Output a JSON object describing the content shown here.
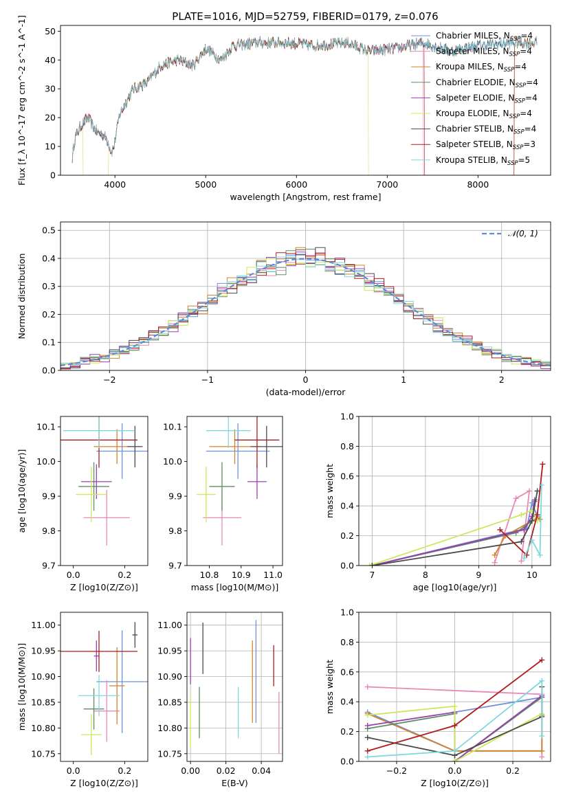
{
  "figure": {
    "title": "PLATE=1016, MJD=52759, FIBERID=0179, z=0.076"
  },
  "colors": [
    "#6f8fe0",
    "#e889b8",
    "#d4822a",
    "#5a8f64",
    "#9b3fb0",
    "#cde85a",
    "#4a4a4a",
    "#b01a1a",
    "#7fd8e0"
  ],
  "chart_data": [
    {
      "id": "spectrum",
      "type": "line",
      "xlabel": "wavelength [Angstrom, rest frame]",
      "ylabel": "Flux [f_λ 10^-17 erg cm^-2 s^-1 A^-1]",
      "xlim": [
        3400,
        8800
      ],
      "ylim": [
        0,
        52
      ],
      "xticks": [
        4000,
        5000,
        6000,
        7000,
        8000
      ],
      "yticks": [
        0,
        10,
        20,
        30,
        40,
        50
      ],
      "grid": false,
      "legend_position": "right",
      "series": [
        {
          "name": "Chabrier MILES, N_SSP=4",
          "color": "#6f8fe0"
        },
        {
          "name": "Salpeter MILES, N_SSP=4",
          "color": "#e889b8"
        },
        {
          "name": "Kroupa MILES, N_SSP=4",
          "color": "#d4822a"
        },
        {
          "name": "Chabrier ELODIE, N_SSP=4",
          "color": "#5a8f64"
        },
        {
          "name": "Salpeter ELODIE, N_SSP=4",
          "color": "#9b3fb0"
        },
        {
          "name": "Kroupa ELODIE, N_SSP=4",
          "color": "#cde85a"
        },
        {
          "name": "Chabrier STELIB, N_SSP=4",
          "color": "#4a4a4a"
        },
        {
          "name": "Salpeter STELIB, N_SSP=3",
          "color": "#b01a1a"
        },
        {
          "name": "Kroupa STELIB, N_SSP=5",
          "color": "#7fd8e0"
        }
      ],
      "continuum": [
        [
          3520,
          4
        ],
        [
          3560,
          13
        ],
        [
          3620,
          17
        ],
        [
          3700,
          20
        ],
        [
          3800,
          15
        ],
        [
          3870,
          14
        ],
        [
          3920,
          12
        ],
        [
          3960,
          8
        ],
        [
          3990,
          10
        ],
        [
          4050,
          21
        ],
        [
          4200,
          30
        ],
        [
          4350,
          32
        ],
        [
          4500,
          38
        ],
        [
          4700,
          40
        ],
        [
          4862,
          38
        ],
        [
          5000,
          44
        ],
        [
          5173,
          40
        ],
        [
          5300,
          45
        ],
        [
          5600,
          46
        ],
        [
          5900,
          46
        ],
        [
          6200,
          45
        ],
        [
          6563,
          46
        ],
        [
          6800,
          43
        ],
        [
          7100,
          44
        ],
        [
          7400,
          46
        ],
        [
          7700,
          43
        ],
        [
          8000,
          45
        ],
        [
          8400,
          46
        ],
        [
          8700,
          46
        ]
      ],
      "noise_amplitude": 1.6,
      "dropouts": [
        {
          "series": 5,
          "range": [
            3650,
            3930
          ]
        },
        {
          "series": 5,
          "range": [
            6790,
            8400
          ]
        },
        {
          "series": 7,
          "range": [
            7410,
            8400
          ]
        },
        {
          "series": 1,
          "range": [
            7400,
            8400
          ]
        }
      ]
    },
    {
      "id": "residual-histogram",
      "type": "line",
      "xlabel": "(data-model)/error",
      "ylabel": "Normed distribution",
      "xlim": [
        -2.5,
        2.5
      ],
      "ylim": [
        0,
        0.53
      ],
      "xticks": [
        -2,
        -1,
        0,
        1,
        2
      ],
      "yticks": [
        0.0,
        0.1,
        0.2,
        0.3,
        0.4,
        0.5
      ],
      "grid": true,
      "legend": [
        {
          "name": "𝒩(0, 1)",
          "style": "dashed",
          "color": "#5b8bd6"
        }
      ],
      "legend_position": "top-right",
      "bin_width": 0.1,
      "bin_start": -2.5,
      "histogram_scale": 1.0,
      "jitter": 0.03
    },
    {
      "id": "age-vs-z",
      "type": "scatter",
      "xlabel": "Z [log10(Z/Z⊙)]",
      "ylabel": "age  [log10(age/yr)]",
      "xlim": [
        -0.05,
        0.29
      ],
      "ylim": [
        9.7,
        10.13
      ],
      "xticks": [
        0.0,
        0.2
      ],
      "yticks": [
        9.7,
        9.8,
        9.9,
        10.0,
        10.1
      ],
      "grid": false,
      "points": [
        {
          "x": 0.19,
          "y": 10.03,
          "xerr": 0.1,
          "yerr": 0.08,
          "color": "#6f8fe0"
        },
        {
          "x": 0.13,
          "y": 9.838,
          "xerr": 0.09,
          "yerr": 0.08,
          "color": "#e889b8"
        },
        {
          "x": 0.17,
          "y": 10.043,
          "xerr": 0.09,
          "yerr": 0.05,
          "color": "#d4822a"
        },
        {
          "x": 0.08,
          "y": 9.928,
          "xerr": 0.06,
          "yerr": 0.07,
          "color": "#5a8f64"
        },
        {
          "x": 0.09,
          "y": 9.942,
          "xerr": 0.06,
          "yerr": 0.05,
          "color": "#9b3fb0"
        },
        {
          "x": 0.07,
          "y": 9.905,
          "xerr": 0.06,
          "yerr": 0.08,
          "color": "#cde85a"
        },
        {
          "x": 0.24,
          "y": 10.043,
          "xerr": 0.03,
          "yerr": 0.06,
          "color": "#4a4a4a"
        },
        {
          "x": 0.1,
          "y": 10.062,
          "xerr": 0.15,
          "yerr": 0.08,
          "color": "#b01a1a"
        },
        {
          "x": 0.1,
          "y": 10.089,
          "xerr": 0.14,
          "yerr": 0.05,
          "color": "#7fd8e0"
        }
      ]
    },
    {
      "id": "age-vs-mass",
      "type": "scatter",
      "xlabel": "mass [log10(M/M⊙)]",
      "ylabel": "",
      "xlim": [
        10.73,
        11.03
      ],
      "ylim": [
        9.7,
        10.13
      ],
      "xticks": [
        10.8,
        10.9,
        11.0
      ],
      "yticks": [
        9.7,
        9.8,
        9.9,
        10.0,
        10.1
      ],
      "grid": false,
      "points": [
        {
          "x": 10.89,
          "y": 10.03,
          "xerr": 0.1,
          "yerr": 0.08,
          "color": "#6f8fe0"
        },
        {
          "x": 10.84,
          "y": 9.838,
          "xerr": 0.06,
          "yerr": 0.08,
          "color": "#e889b8"
        },
        {
          "x": 10.88,
          "y": 10.043,
          "xerr": 0.08,
          "yerr": 0.05,
          "color": "#d4822a"
        },
        {
          "x": 10.84,
          "y": 9.928,
          "xerr": 0.04,
          "yerr": 0.07,
          "color": "#5a8f64"
        },
        {
          "x": 10.95,
          "y": 9.942,
          "xerr": 0.03,
          "yerr": 0.05,
          "color": "#9b3fb0"
        },
        {
          "x": 10.79,
          "y": 9.905,
          "xerr": 0.03,
          "yerr": 0.08,
          "color": "#cde85a"
        },
        {
          "x": 10.98,
          "y": 10.043,
          "xerr": 0.05,
          "yerr": 0.06,
          "color": "#4a4a4a"
        },
        {
          "x": 10.95,
          "y": 10.062,
          "xerr": 0.07,
          "yerr": 0.08,
          "color": "#b01a1a"
        },
        {
          "x": 10.86,
          "y": 10.089,
          "xerr": 0.07,
          "yerr": 0.05,
          "color": "#7fd8e0"
        }
      ]
    },
    {
      "id": "mass-weight-vs-age",
      "type": "line",
      "xlabel": "age  [log10(age/yr)]",
      "ylabel": "mass weight",
      "xlim": [
        6.75,
        10.35
      ],
      "ylim": [
        0,
        1.0
      ],
      "xticks": [
        7,
        8,
        9,
        10
      ],
      "yticks": [
        0.0,
        0.2,
        0.4,
        0.6,
        0.8,
        1.0
      ],
      "grid": true,
      "series": [
        {
          "color": "#6f8fe0",
          "points": [
            [
              7.0,
              0.0
            ],
            [
              9.9,
              0.25
            ],
            [
              10.0,
              0.42
            ],
            [
              10.1,
              0.33
            ]
          ]
        },
        {
          "color": "#e889b8",
          "points": [
            [
              9.3,
              0.02
            ],
            [
              9.7,
              0.45
            ],
            [
              9.95,
              0.5
            ],
            [
              9.8,
              0.03
            ]
          ]
        },
        {
          "color": "#d4822a",
          "points": [
            [
              9.3,
              0.07
            ],
            [
              9.5,
              0.2
            ],
            [
              10.1,
              0.32
            ],
            [
              10.15,
              0.31
            ]
          ]
        },
        {
          "color": "#5a8f64",
          "points": [
            [
              7.0,
              0.0
            ],
            [
              9.7,
              0.22
            ],
            [
              10.0,
              0.3
            ],
            [
              10.05,
              0.43
            ]
          ]
        },
        {
          "color": "#9b3fb0",
          "points": [
            [
              7.0,
              0.0
            ],
            [
              9.85,
              0.24
            ],
            [
              10.0,
              0.33
            ],
            [
              10.05,
              0.44
            ]
          ]
        },
        {
          "color": "#cde85a",
          "points": [
            [
              6.95,
              0.0
            ],
            [
              9.8,
              0.34
            ],
            [
              10.0,
              0.37
            ],
            [
              10.1,
              0.3
            ]
          ]
        },
        {
          "color": "#4a4a4a",
          "points": [
            [
              7.0,
              0.0
            ],
            [
              9.8,
              0.16
            ],
            [
              10.0,
              0.3
            ],
            [
              10.1,
              0.5
            ]
          ]
        },
        {
          "color": "#b01a1a",
          "points": [
            [
              9.4,
              0.24
            ],
            [
              9.9,
              0.07
            ],
            [
              10.1,
              0.34
            ],
            [
              10.2,
              0.68
            ]
          ]
        },
        {
          "color": "#7fd8e0",
          "points": [
            [
              9.85,
              0.05
            ],
            [
              10.0,
              0.17
            ],
            [
              10.15,
              0.07
            ],
            [
              10.18,
              0.54
            ]
          ]
        }
      ]
    },
    {
      "id": "mass-vs-z",
      "type": "scatter",
      "xlabel": "Z [log10(Z/Z⊙)]",
      "ylabel": "mass [log10(M/M⊙)]",
      "xlim": [
        -0.05,
        0.29
      ],
      "ylim": [
        10.735,
        11.025
      ],
      "xticks": [
        0.0,
        0.2
      ],
      "yticks": [
        10.75,
        10.8,
        10.85,
        10.9,
        10.95,
        11.0
      ],
      "grid": false,
      "points": [
        {
          "x": 0.19,
          "y": 10.89,
          "xerr": 0.1,
          "yerr": 0.1,
          "color": "#6f8fe0"
        },
        {
          "x": 0.13,
          "y": 10.833,
          "xerr": 0.05,
          "yerr": 0.06,
          "color": "#e889b8"
        },
        {
          "x": 0.17,
          "y": 10.882,
          "xerr": 0.03,
          "yerr": 0.075,
          "color": "#d4822a"
        },
        {
          "x": 0.08,
          "y": 10.837,
          "xerr": 0.04,
          "yerr": 0.04,
          "color": "#5a8f64"
        },
        {
          "x": 0.09,
          "y": 10.94,
          "xerr": 0.01,
          "yerr": 0.03,
          "color": "#9b3fb0"
        },
        {
          "x": 0.07,
          "y": 10.787,
          "xerr": 0.04,
          "yerr": 0.04,
          "color": "#cde85a"
        },
        {
          "x": 0.24,
          "y": 10.981,
          "xerr": 0.01,
          "yerr": 0.025,
          "color": "#4a4a4a"
        },
        {
          "x": 0.1,
          "y": 10.949,
          "xerr": 0.15,
          "yerr": 0.04,
          "color": "#b01a1a"
        },
        {
          "x": 0.1,
          "y": 10.863,
          "xerr": 0.08,
          "yerr": 0.04,
          "color": "#7fd8e0"
        }
      ]
    },
    {
      "id": "mass-vs-ebv",
      "type": "scatter",
      "xlabel": "E(B-V)",
      "ylabel": "",
      "xlim": [
        -0.002,
        0.052
      ],
      "ylim": [
        10.735,
        11.025
      ],
      "xticks": [
        0.0,
        0.02,
        0.04
      ],
      "yticks": [
        10.75,
        10.8,
        10.85,
        10.9,
        10.95,
        11.0
      ],
      "grid": true,
      "points": [
        {
          "x": 0.037,
          "y": 10.91,
          "yerr": 0.1,
          "color": "#6f8fe0"
        },
        {
          "x": 0.05,
          "y": 10.81,
          "yerr": 0.06,
          "color": "#e889b8"
        },
        {
          "x": 0.035,
          "y": 10.89,
          "yerr": 0.08,
          "color": "#d4822a"
        },
        {
          "x": 0.005,
          "y": 10.83,
          "yerr": 0.05,
          "color": "#5a8f64"
        },
        {
          "x": 0.0,
          "y": 10.93,
          "yerr": 0.045,
          "color": "#9b3fb0"
        },
        {
          "x": 0.0,
          "y": 10.812,
          "yerr": 0.05,
          "color": "#cde85a"
        },
        {
          "x": 0.007,
          "y": 10.955,
          "yerr": 0.05,
          "color": "#4a4a4a"
        },
        {
          "x": 0.047,
          "y": 10.921,
          "yerr": 0.04,
          "color": "#b01a1a"
        },
        {
          "x": 0.027,
          "y": 10.83,
          "yerr": 0.05,
          "color": "#7fd8e0"
        }
      ]
    },
    {
      "id": "mass-weight-vs-z",
      "type": "line",
      "xlabel": "Z [log10(Z/Z⊙)]",
      "ylabel": "mass weight",
      "xlim": [
        -0.33,
        0.33
      ],
      "ylim": [
        0,
        1.0
      ],
      "xticks": [
        -0.2,
        0.0,
        0.2
      ],
      "yticks": [
        0.0,
        0.2,
        0.4,
        0.6,
        0.8,
        1.0
      ],
      "grid": true,
      "series": [
        {
          "color": "#6f8fe0",
          "points": [
            [
              -0.3,
              0.33
            ],
            [
              0.0,
              0.07
            ],
            [
              0.3,
              0.07
            ],
            [
              0.3,
              0.43
            ],
            [
              0.0,
              0.33
            ]
          ]
        },
        {
          "color": "#e889b8",
          "points": [
            [
              -0.3,
              0.5
            ],
            [
              0.3,
              0.45
            ],
            [
              0.3,
              0.03
            ]
          ]
        },
        {
          "color": "#d4822a",
          "points": [
            [
              -0.3,
              0.32
            ],
            [
              0.0,
              0.07
            ],
            [
              0.3,
              0.07
            ],
            [
              0.3,
              0.31
            ]
          ]
        },
        {
          "color": "#5a8f64",
          "points": [
            [
              -0.3,
              0.22
            ],
            [
              0.0,
              0.32
            ],
            [
              0.0,
              0.0
            ],
            [
              0.3,
              0.43
            ]
          ]
        },
        {
          "color": "#9b3fb0",
          "points": [
            [
              -0.3,
              0.24
            ],
            [
              0.0,
              0.33
            ],
            [
              0.0,
              0.0
            ],
            [
              0.3,
              0.44
            ]
          ]
        },
        {
          "color": "#cde85a",
          "points": [
            [
              -0.3,
              0.31
            ],
            [
              0.0,
              0.37
            ],
            [
              0.0,
              0.0
            ],
            [
              0.3,
              0.32
            ]
          ]
        },
        {
          "color": "#4a4a4a",
          "points": [
            [
              -0.3,
              0.16
            ],
            [
              0.0,
              0.04
            ],
            [
              0.3,
              0.3
            ],
            [
              0.3,
              0.5
            ]
          ]
        },
        {
          "color": "#b01a1a",
          "points": [
            [
              -0.3,
              0.07
            ],
            [
              0.0,
              0.24
            ],
            [
              0.3,
              0.68
            ]
          ]
        },
        {
          "color": "#7fd8e0",
          "points": [
            [
              -0.3,
              0.03
            ],
            [
              0.0,
              0.07
            ],
            [
              0.3,
              0.54
            ],
            [
              0.3,
              0.17
            ]
          ]
        }
      ]
    }
  ]
}
